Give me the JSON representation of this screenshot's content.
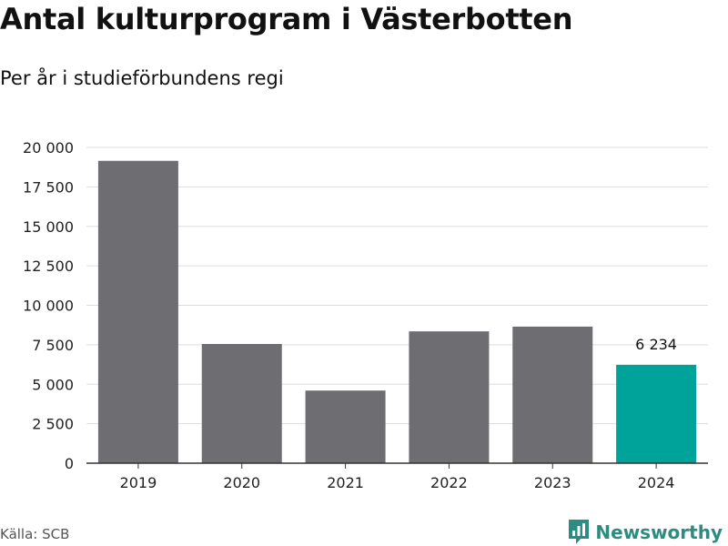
{
  "header": {
    "title": "Antal kulturprogram i Västerbotten",
    "subtitle": "Per år i studieförbundens regi"
  },
  "footer": {
    "source": "Källa: SCB",
    "brand": "Newsworthy",
    "brand_icon": "newsworthy-logo-icon"
  },
  "colors": {
    "bar": "#6e6d72",
    "highlight": "#00a39a",
    "grid": "#dddddd",
    "axis": "#333333",
    "brand": "#2b8c82"
  },
  "chart_data": {
    "type": "bar",
    "title": "Antal kulturprogram i Västerbotten",
    "subtitle": "Per år i studieförbundens regi",
    "categories": [
      "2019",
      "2020",
      "2021",
      "2022",
      "2023",
      "2024"
    ],
    "values": [
      19150,
      7550,
      4600,
      8350,
      8650,
      6234
    ],
    "highlight_index": 5,
    "data_labels": [
      {
        "index": 5,
        "text": "6 234"
      }
    ],
    "yticks": [
      0,
      2500,
      5000,
      7500,
      10000,
      12500,
      15000,
      17500,
      20000
    ],
    "ytick_labels": [
      "0",
      "2 500",
      "5 000",
      "7 500",
      "10 000",
      "12 500",
      "15 000",
      "17 500",
      "20 000"
    ],
    "ylim": [
      0,
      20000
    ],
    "xlabel": "",
    "ylabel": "",
    "grid": true,
    "legend": "none"
  }
}
